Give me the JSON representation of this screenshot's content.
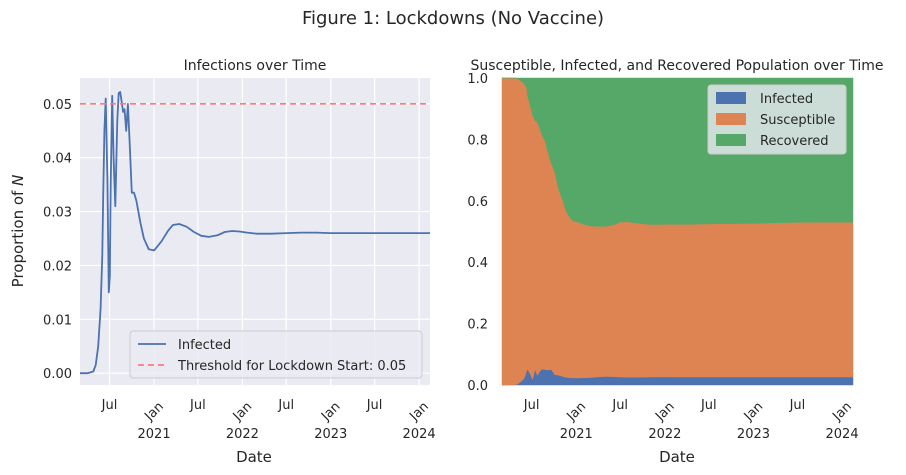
{
  "figure": {
    "title": "Figure 1: Lockdowns (No Vaccine)"
  },
  "chart_data": [
    {
      "type": "line",
      "title": "Infections over Time",
      "xlabel": "Date",
      "ylabel": "Proportion of N",
      "xlim": [
        "2020-03-01",
        "2024-02-15"
      ],
      "ylim": [
        -0.0022,
        0.0548
      ],
      "yticks": [
        0.0,
        0.01,
        0.02,
        0.03,
        0.04,
        0.05
      ],
      "ytick_labels": [
        "0.00",
        "0.01",
        "0.02",
        "0.03",
        "0.04",
        "0.05"
      ],
      "xticks": [
        {
          "date": "2020-07-01",
          "label": "Jul"
        },
        {
          "date": "2021-01-01",
          "label": "Jan 2021"
        },
        {
          "date": "2021-07-01",
          "label": "Jul"
        },
        {
          "date": "2022-01-01",
          "label": "Jan 2022"
        },
        {
          "date": "2022-07-01",
          "label": "Jul"
        },
        {
          "date": "2023-01-01",
          "label": "Jan 2023"
        },
        {
          "date": "2023-07-01",
          "label": "Jul"
        },
        {
          "date": "2024-01-01",
          "label": "Jan 2024"
        }
      ],
      "grid": true,
      "legend": "lower-right",
      "series": [
        {
          "name": "Infected",
          "color": "#4c72b0",
          "style": "solid",
          "x": [
            "2020-03-01",
            "2020-04-01",
            "2020-04-25",
            "2020-05-05",
            "2020-05-15",
            "2020-05-25",
            "2020-06-01",
            "2020-06-05",
            "2020-06-10",
            "2020-06-15",
            "2020-06-22",
            "2020-06-28",
            "2020-07-02",
            "2020-07-06",
            "2020-07-12",
            "2020-07-18",
            "2020-07-25",
            "2020-08-02",
            "2020-08-08",
            "2020-08-14",
            "2020-08-20",
            "2020-08-26",
            "2020-09-01",
            "2020-09-08",
            "2020-09-15",
            "2020-09-22",
            "2020-10-01",
            "2020-10-10",
            "2020-10-20",
            "2020-11-05",
            "2020-11-20",
            "2020-12-10",
            "2021-01-01",
            "2021-02-01",
            "2021-03-01",
            "2021-03-20",
            "2021-04-15",
            "2021-05-15",
            "2021-06-15",
            "2021-07-15",
            "2021-08-15",
            "2021-09-20",
            "2021-10-20",
            "2021-11-20",
            "2021-12-20",
            "2022-01-20",
            "2022-03-01",
            "2022-05-01",
            "2022-07-01",
            "2022-09-01",
            "2022-11-01",
            "2023-01-01",
            "2023-03-01",
            "2023-05-01",
            "2023-07-01",
            "2023-09-01",
            "2023-11-01",
            "2024-01-01",
            "2024-02-15"
          ],
          "y": [
            0.0,
            0.0,
            0.0003,
            0.0015,
            0.005,
            0.012,
            0.022,
            0.033,
            0.045,
            0.051,
            0.036,
            0.015,
            0.018,
            0.035,
            0.0515,
            0.04,
            0.031,
            0.047,
            0.052,
            0.0522,
            0.0505,
            0.0485,
            0.049,
            0.045,
            0.05,
            0.043,
            0.0335,
            0.0335,
            0.032,
            0.028,
            0.025,
            0.023,
            0.0228,
            0.0245,
            0.0265,
            0.0275,
            0.0277,
            0.0272,
            0.0262,
            0.0255,
            0.0253,
            0.0256,
            0.0262,
            0.0264,
            0.0263,
            0.0261,
            0.0259,
            0.0259,
            0.026,
            0.0261,
            0.0261,
            0.026,
            0.026,
            0.026,
            0.026,
            0.026,
            0.026,
            0.026,
            0.026
          ]
        },
        {
          "name": "Threshold for Lockdown Start: 0.05",
          "color": "#ff7b7b",
          "style": "dashed",
          "y_constant": 0.05
        }
      ]
    },
    {
      "type": "area",
      "stacked": true,
      "title": "Susceptible, Infected, and Recovered Population over Time",
      "xlabel": "Date",
      "ylabel": "",
      "xlim": [
        "2020-03-01",
        "2024-02-15"
      ],
      "ylim": [
        0.0,
        1.0
      ],
      "yticks": [
        0.0,
        0.2,
        0.4,
        0.6,
        0.8,
        1.0
      ],
      "ytick_labels": [
        "0.0",
        "0.2",
        "0.4",
        "0.6",
        "0.8",
        "1.0"
      ],
      "xticks": [
        {
          "date": "2020-07-01",
          "label": "Jul"
        },
        {
          "date": "2021-01-01",
          "label": "Jan 2021"
        },
        {
          "date": "2021-07-01",
          "label": "Jul"
        },
        {
          "date": "2022-01-01",
          "label": "Jan 2022"
        },
        {
          "date": "2022-07-01",
          "label": "Jul"
        },
        {
          "date": "2023-01-01",
          "label": "Jan 2023"
        },
        {
          "date": "2023-07-01",
          "label": "Jul"
        },
        {
          "date": "2024-01-01",
          "label": "Jan 2024"
        }
      ],
      "grid": false,
      "legend": "top-right",
      "x": [
        "2020-03-01",
        "2020-05-01",
        "2020-05-20",
        "2020-06-01",
        "2020-06-10",
        "2020-06-15",
        "2020-06-25",
        "2020-07-05",
        "2020-07-15",
        "2020-07-25",
        "2020-08-05",
        "2020-08-15",
        "2020-08-25",
        "2020-09-05",
        "2020-09-20",
        "2020-10-05",
        "2020-10-20",
        "2020-11-05",
        "2020-11-20",
        "2020-12-05",
        "2020-12-20",
        "2021-01-10",
        "2021-02-01",
        "2021-03-01",
        "2021-04-01",
        "2021-05-01",
        "2021-06-01",
        "2021-07-01",
        "2021-08-01",
        "2021-09-01",
        "2021-10-01",
        "2021-11-01",
        "2021-12-01",
        "2022-01-01",
        "2022-04-01",
        "2022-07-01",
        "2022-10-01",
        "2023-01-01",
        "2023-04-01",
        "2023-07-01",
        "2023-10-01",
        "2024-01-01",
        "2024-02-15"
      ],
      "series": [
        {
          "name": "Infected",
          "color": "#4c72b0",
          "values": [
            0.0,
            0.0015,
            0.012,
            0.022,
            0.045,
            0.051,
            0.036,
            0.018,
            0.0515,
            0.031,
            0.047,
            0.052,
            0.0505,
            0.049,
            0.05,
            0.0335,
            0.032,
            0.028,
            0.025,
            0.0235,
            0.023,
            0.0228,
            0.0235,
            0.0245,
            0.0265,
            0.0277,
            0.0272,
            0.0262,
            0.0255,
            0.0253,
            0.0256,
            0.0262,
            0.0264,
            0.0263,
            0.026,
            0.0259,
            0.026,
            0.0261,
            0.026,
            0.026,
            0.026,
            0.026,
            0.026
          ]
        },
        {
          "name": "Susceptible",
          "color": "#dd8452",
          "values": [
            1.0,
            0.998,
            0.978,
            0.958,
            0.925,
            0.889,
            0.874,
            0.862,
            0.809,
            0.825,
            0.787,
            0.758,
            0.745,
            0.713,
            0.673,
            0.659,
            0.605,
            0.577,
            0.542,
            0.522,
            0.511,
            0.507,
            0.4995,
            0.4935,
            0.49,
            0.489,
            0.4935,
            0.504,
            0.5065,
            0.5025,
            0.4995,
            0.4965,
            0.4963,
            0.4967,
            0.497,
            0.499,
            0.4995,
            0.5004,
            0.5025,
            0.5037,
            0.504,
            0.504,
            0.504
          ]
        },
        {
          "name": "Recovered",
          "color": "#55a868",
          "values": [
            0.0,
            0.0005,
            0.01,
            0.02,
            0.03,
            0.06,
            0.09,
            0.12,
            0.1395,
            0.144,
            0.166,
            0.19,
            0.2045,
            0.238,
            0.277,
            0.3075,
            0.363,
            0.395,
            0.433,
            0.4545,
            0.466,
            0.4702,
            0.477,
            0.482,
            0.4835,
            0.4833,
            0.4793,
            0.4698,
            0.468,
            0.4722,
            0.4749,
            0.4773,
            0.4773,
            0.477,
            0.477,
            0.4751,
            0.4745,
            0.4735,
            0.4715,
            0.4703,
            0.47,
            0.47,
            0.47
          ]
        }
      ]
    }
  ]
}
